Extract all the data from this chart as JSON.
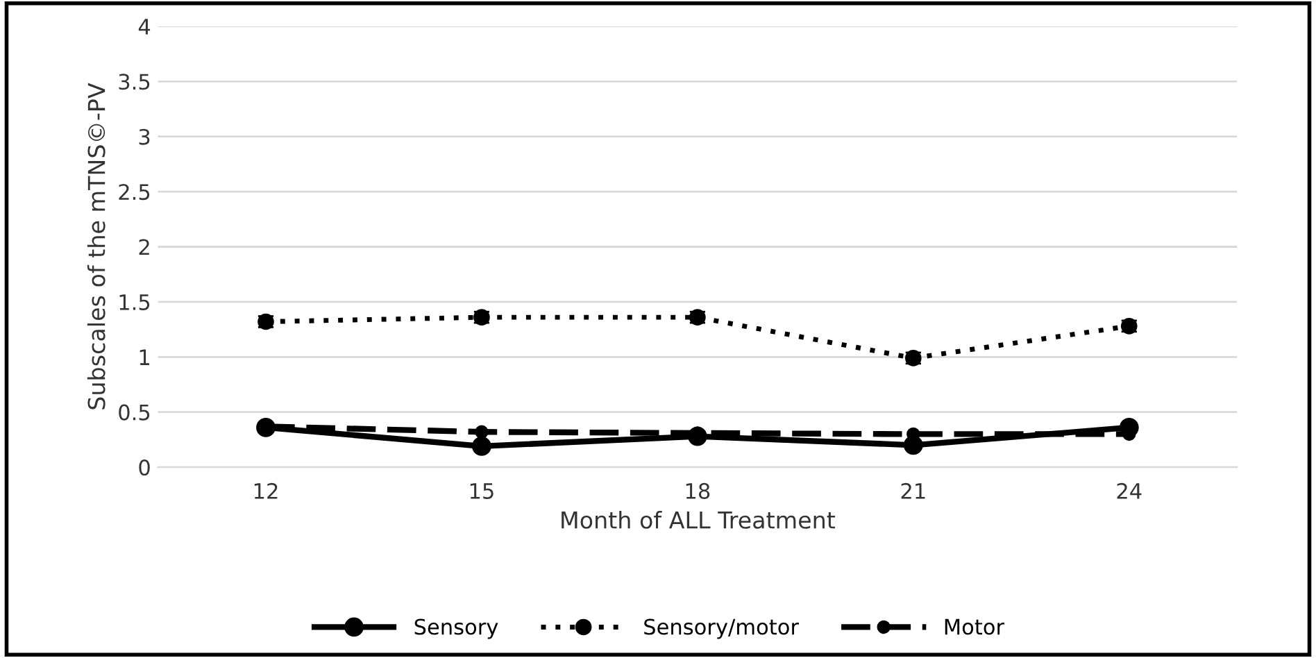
{
  "chart_data": {
    "type": "line",
    "xlabel": "Month of ALL Treatment",
    "ylabel": "Subscales of the mTNS©-PV",
    "categories": [
      "12",
      "15",
      "18",
      "21",
      "24"
    ],
    "series": [
      {
        "name": "Sensory",
        "color": "#000000",
        "line_style": "solid",
        "values": [
          0.36,
          0.19,
          0.28,
          0.2,
          0.36
        ]
      },
      {
        "name": "Sensory/motor",
        "color": "#000000",
        "line_style": "dotted",
        "values": [
          1.32,
          1.36,
          1.36,
          0.99,
          1.28
        ],
        "errors": [
          0.05,
          0.05,
          0.05,
          0.05,
          0.05
        ]
      },
      {
        "name": "Motor",
        "color": "#000000",
        "line_style": "dashed",
        "values": [
          0.37,
          0.32,
          0.31,
          0.3,
          0.3
        ]
      }
    ],
    "ylim": [
      0,
      4
    ],
    "yticks": [
      0,
      0.5,
      1,
      1.5,
      2,
      2.5,
      3,
      3.5,
      4
    ],
    "grid": "y",
    "legend": "bottom",
    "marker": "circle"
  }
}
